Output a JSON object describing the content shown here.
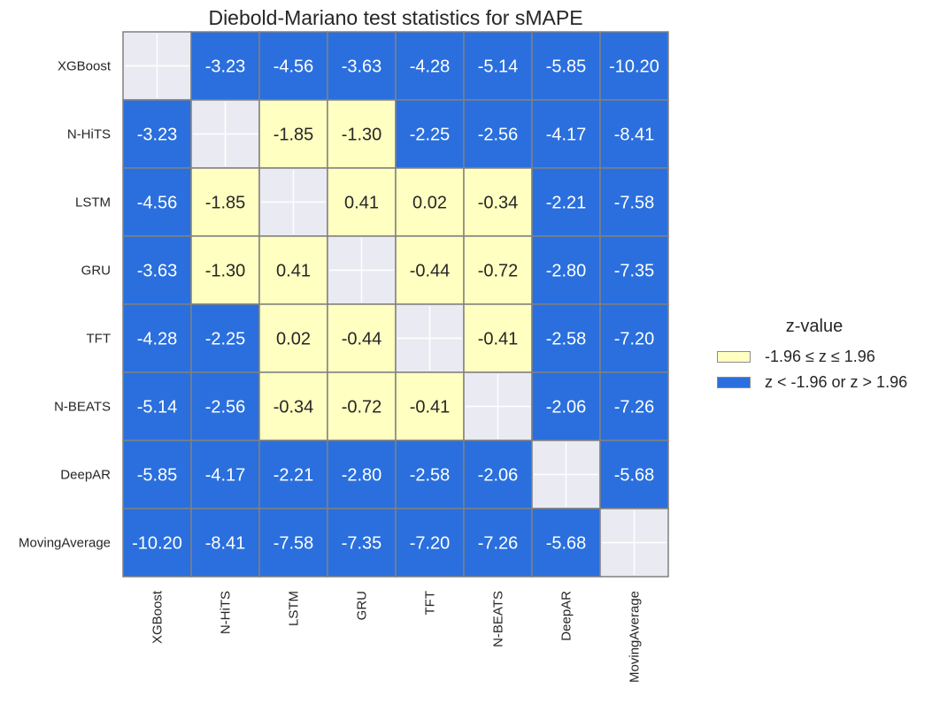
{
  "chart_data": {
    "type": "heatmap",
    "title": "Diebold-Mariano test statistics for sMAPE",
    "labels": [
      "XGBoost",
      "N-HiTS",
      "LSTM",
      "GRU",
      "TFT",
      "N-BEATS",
      "DeepAR",
      "MovingAverage"
    ],
    "values": [
      [
        null,
        -3.23,
        -4.56,
        -3.63,
        -4.28,
        -5.14,
        -5.85,
        -10.2
      ],
      [
        -3.23,
        null,
        -1.85,
        -1.3,
        -2.25,
        -2.56,
        -4.17,
        -8.41
      ],
      [
        -4.56,
        -1.85,
        null,
        0.41,
        0.02,
        -0.34,
        -2.21,
        -7.58
      ],
      [
        -3.63,
        -1.3,
        0.41,
        null,
        -0.44,
        -0.72,
        -2.8,
        -7.35
      ],
      [
        -4.28,
        -2.25,
        0.02,
        -0.44,
        null,
        -0.41,
        -2.58,
        -7.2
      ],
      [
        -5.14,
        -2.56,
        -0.34,
        -0.72,
        -0.41,
        null,
        -2.06,
        -7.26
      ],
      [
        -5.85,
        -4.17,
        -2.21,
        -2.8,
        -2.58,
        -2.06,
        null,
        -5.68
      ],
      [
        -10.2,
        -8.41,
        -7.58,
        -7.35,
        -7.2,
        -7.26,
        -5.68,
        null
      ]
    ],
    "threshold": 1.96,
    "colors": {
      "not_significant": "#ffffc2",
      "significant": "#2a6fdd",
      "diagonal": "#eaeaf2",
      "grid": "#808080"
    },
    "legend": {
      "title": "z-value",
      "placement": "right",
      "entries": [
        {
          "label": "-1.96 ≤ z ≤ 1.96",
          "color": "#ffffc2"
        },
        {
          "label": "z < -1.96 or z > 1.96",
          "color": "#2a6fdd"
        }
      ]
    }
  }
}
